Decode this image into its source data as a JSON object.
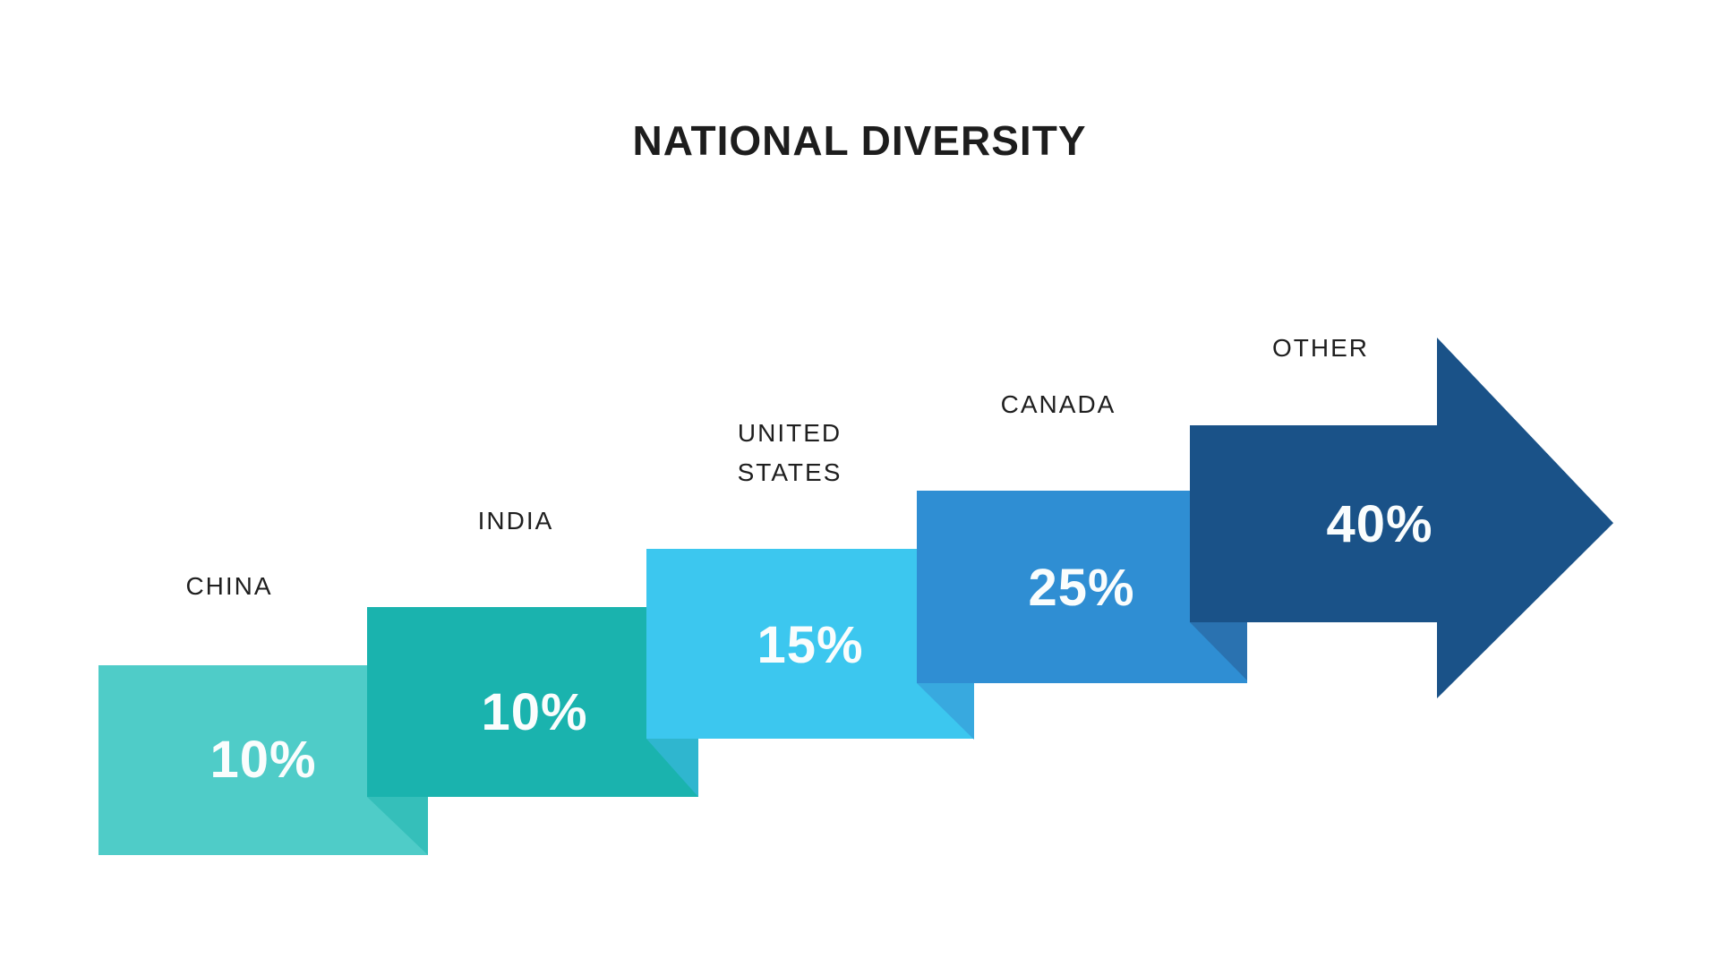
{
  "title": "NATIONAL DIVERSITY",
  "background": "#FFFFFF",
  "text_colors": {
    "title": "#1D1D1D",
    "category_labels": "#1F1F1F",
    "value_labels": "#FAFDFD"
  },
  "chart_data": {
    "type": "bar",
    "variant": "stepped-arrow-infographic",
    "title": "NATIONAL DIVERSITY",
    "categories": [
      "CHINA",
      "INDIA",
      "UNITED STATES",
      "CANADA",
      "OTHER"
    ],
    "values": [
      10,
      10,
      15,
      25,
      40
    ],
    "unit": "%",
    "value_labels": [
      "10%",
      "10%",
      "15%",
      "25%",
      "40%"
    ],
    "colors": [
      "#4FCCC8",
      "#1AB3AE",
      "#3CC7EF",
      "#2F8ED3",
      "#1A5288"
    ],
    "legend": "none",
    "axes": "none",
    "orientation": "ascending left-to-right, last segment drawn as a right-pointing arrow"
  },
  "segments": [
    {
      "id": "china",
      "label_lines": [
        "CHINA"
      ],
      "value": "10%",
      "color": "#4FCCC8",
      "fold_color": null
    },
    {
      "id": "india",
      "label_lines": [
        "INDIA"
      ],
      "value": "10%",
      "color": "#1AB3AE",
      "fold_color": "#35BFBA"
    },
    {
      "id": "united-states",
      "label_lines": [
        "UNITED",
        "STATES"
      ],
      "value": "15%",
      "color": "#3CC7EF",
      "fold_color": "#2FB6CF"
    },
    {
      "id": "canada",
      "label_lines": [
        "CANADA"
      ],
      "value": "25%",
      "color": "#2F8ED3",
      "fold_color": "#38A9DF"
    },
    {
      "id": "other",
      "label_lines": [
        "OTHER"
      ],
      "value": "40%",
      "color": "#1A5288",
      "fold_color": "#2A72B0"
    }
  ]
}
